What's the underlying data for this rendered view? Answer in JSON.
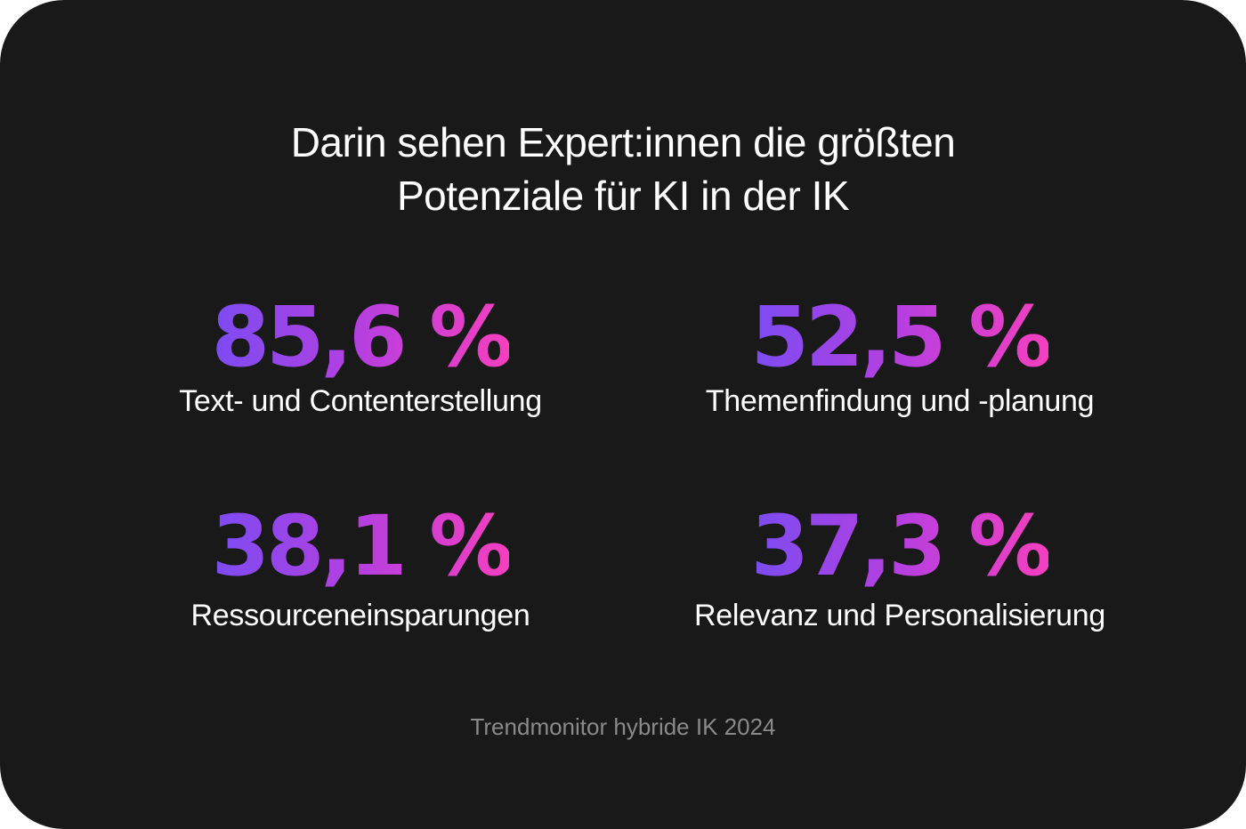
{
  "title": {
    "line1": "Darin sehen Expert:innen die größten",
    "line2": "Potenziale für KI in der IK"
  },
  "stats": [
    {
      "value": "85,6 %",
      "label": "Text- und Contenterstellung"
    },
    {
      "value": "52,5 %",
      "label": "Themenfindung und -planung"
    },
    {
      "value": "38,1 %",
      "label": "Ressourceneinsparungen"
    },
    {
      "value": "37,3 %",
      "label": "Relevanz und Personalisierung"
    }
  ],
  "source": "Trendmonitor hybride IK 2024",
  "colors": {
    "background": "#1a1919",
    "gradient_start": "#7b4cf2",
    "gradient_end": "#f53fbf",
    "text": "#ffffff",
    "source_text": "#8a8a8a"
  }
}
